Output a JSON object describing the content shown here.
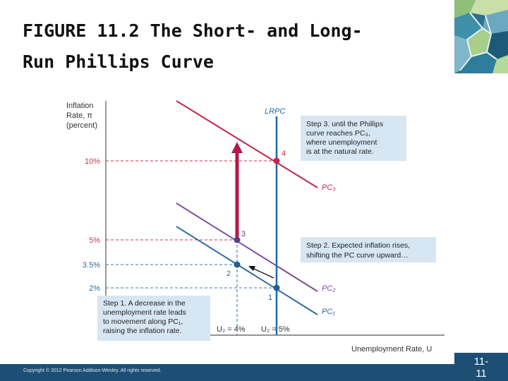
{
  "slide": {
    "title_line1": "FIGURE 11.2  The Short- and Long-",
    "title_line2": "Run Phillips Curve",
    "copyright": "Copyright © 2012 Pearson Addison-Wesley. All rights reserved.",
    "slide_number_top": "11-",
    "slide_number_bottom": "11"
  },
  "graph": {
    "y_axis_label": [
      "Inflation",
      "Rate, π",
      "(percent)"
    ],
    "x_axis_label": "Unemployment Rate, U",
    "y_ticks": [
      "10%",
      "5%",
      "3.5%",
      "2%"
    ],
    "x_ticks": {
      "u2": "U₂ = 4%",
      "un": "U₂ = 5%"
    },
    "curves": {
      "lrpc": "LRPC",
      "pc1": "PC₁",
      "pc2": "PC₂",
      "pc3": "PC₃"
    },
    "points": [
      "1",
      "2",
      "3",
      "4"
    ],
    "step1": [
      "Step 1. A decrease in the",
      "unemployment rate leads",
      "to movement along PC₁,",
      "raising the inflation rate."
    ],
    "step2": [
      "Step 2. Expected inflation rises,",
      "shifting the PC curve upward…"
    ],
    "step3": [
      "Step 3. until the Phillips",
      "curve reaches PC₃,",
      "where unemployment",
      "is at the natural rate."
    ]
  },
  "colors": {
    "pc1": "#2b6aa6",
    "pc2": "#7b4a9b",
    "pc3": "#c4264d",
    "lrpc": "#1f6aa5",
    "arrow": "#b2184a",
    "dashed_red": "#d62e4a",
    "dashed_blue": "#3a78b5",
    "callout": "#d7e6f3",
    "footer": "#1d4f74"
  }
}
